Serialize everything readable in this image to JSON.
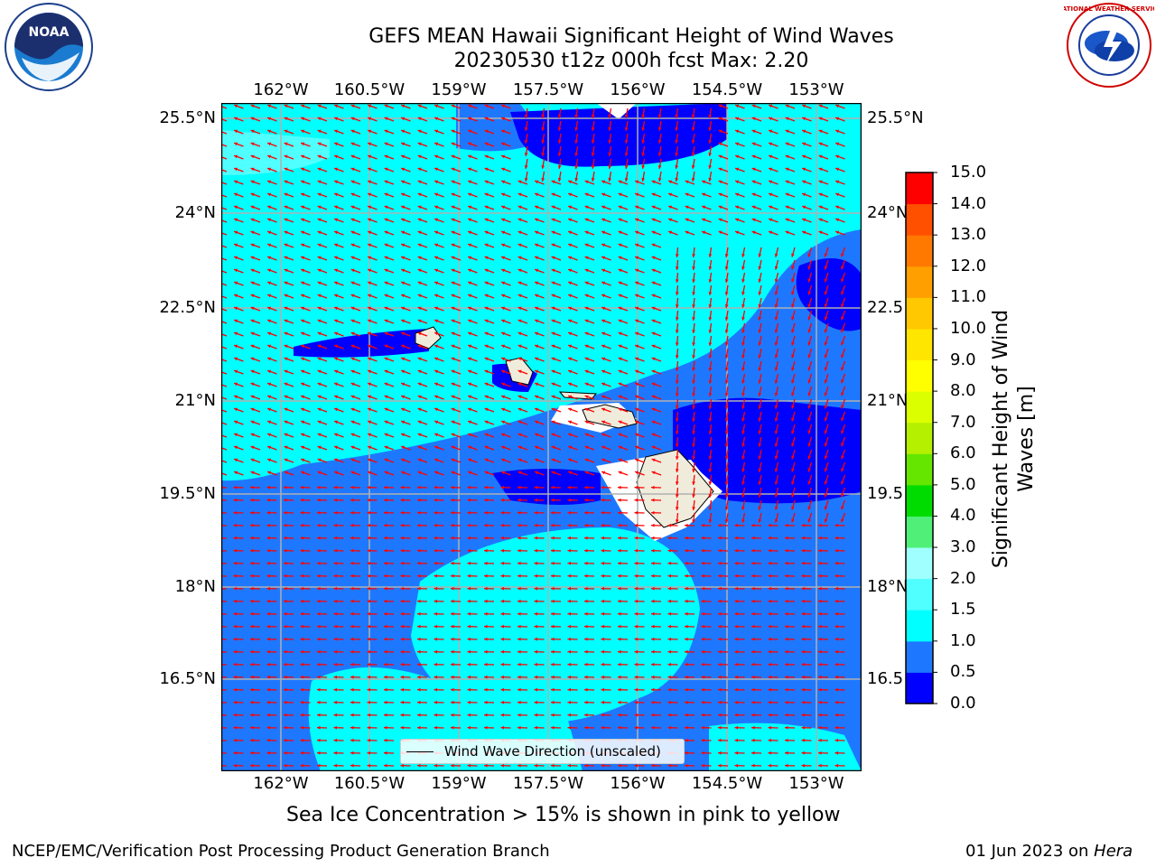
{
  "header": {
    "title_line1": "GEFS MEAN Hawaii Significant Height of Wind Waves",
    "title_line2": "20230530 t12z 000h fcst   Max: 2.20"
  },
  "logos": {
    "left": "NOAA",
    "right": "NATIONAL WEATHER SERVICE"
  },
  "map": {
    "lon_ticks": [
      "162°W",
      "160.5°W",
      "159°W",
      "157.5°W",
      "156°W",
      "154.5°W",
      "153°W"
    ],
    "lat_ticks_left": [
      "25.5°N",
      "24°N",
      "22.5°N",
      "21°N",
      "19.5°N",
      "18°N",
      "16.5°N"
    ],
    "lat_ticks_right": [
      "25.5°N",
      "24°N",
      "22.5",
      "21°N",
      "19.5",
      "18°N",
      "16.5"
    ],
    "legend_label": "Wind Wave Direction (unscaled)",
    "arrow_color": "#ff0000",
    "grid_color": "#b0b0b0"
  },
  "colorbar": {
    "title_line1": "Significant Height of Wind",
    "title_line2": "Waves [m]",
    "levels": [
      "0.0",
      "0.5",
      "1.0",
      "1.5",
      "2.0",
      "3.0",
      "4.0",
      "5.0",
      "6.0",
      "7.0",
      "8.0",
      "9.0",
      "10.0",
      "11.0",
      "12.0",
      "13.0",
      "14.0",
      "15.0"
    ],
    "colors": [
      "#0000ff",
      "#1e78ff",
      "#00ffff",
      "#50ffff",
      "#a0ffff",
      "#50f078",
      "#00dc00",
      "#64e600",
      "#b4f000",
      "#dcff00",
      "#ffff00",
      "#ffe600",
      "#ffc800",
      "#ffa000",
      "#ff7800",
      "#ff5000",
      "#ff0000"
    ]
  },
  "caption": "Sea Ice Concentration > 15% is shown in pink to yellow",
  "footer": {
    "left": "NCEP/EMC/Verification Post Processing Product Generation Branch",
    "right_date": "01 Jun 2023 on ",
    "right_host": "Hera"
  }
}
